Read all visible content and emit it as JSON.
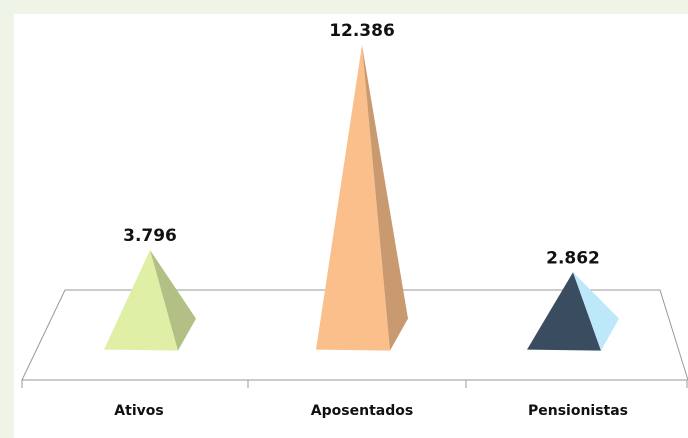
{
  "chart_data": {
    "type": "pyramid",
    "categories": [
      "Ativos",
      "Aposentados",
      "Pensionistas"
    ],
    "values": [
      3796,
      12386,
      2862
    ],
    "value_labels": [
      "3.796",
      "12.386",
      "2.862"
    ],
    "colors": [
      "#dff0a6",
      "#fbbf8c",
      "#bde8fa"
    ]
  }
}
